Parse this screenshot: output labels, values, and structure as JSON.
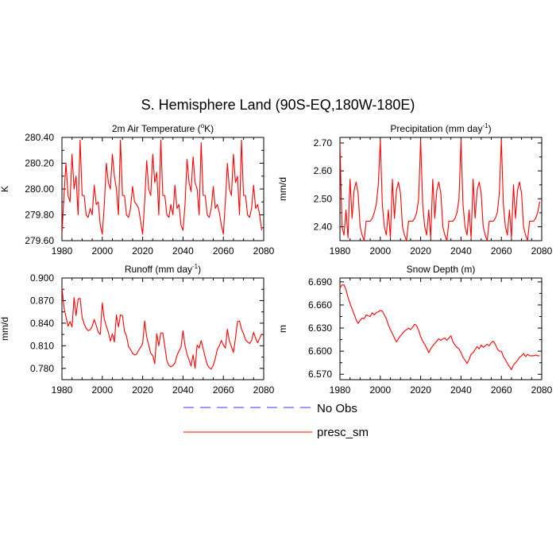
{
  "figure": {
    "title": "S. Hemisphere Land (90S-EQ,180W-180E)"
  },
  "legend": [
    {
      "label": "No Obs",
      "color": "#3333ff",
      "style": "dashed"
    },
    {
      "label": "presc_sm",
      "color": "#ff0000",
      "style": "solid"
    }
  ],
  "chart_data": [
    {
      "type": "line",
      "title": "2m Air Temperature (°K)",
      "ylabel": "K",
      "xlim": [
        1980,
        2080
      ],
      "ylim": [
        279.6,
        280.4
      ],
      "xticks": [
        "1980",
        "2000",
        "2020",
        "2040",
        "2060",
        "2080"
      ],
      "yticks": [
        "279.60",
        "279.80",
        "280.00",
        "280.20",
        "280.40"
      ],
      "series": [
        {
          "name": "presc_sm",
          "color": "#ff0000",
          "x": [
            1980,
            1981,
            1982,
            1983,
            1984,
            1985,
            1986,
            1987,
            1988,
            1989,
            1990,
            1991,
            1992,
            1993,
            1994,
            1995,
            1996,
            1997,
            1998,
            1999,
            2000,
            2001,
            2002,
            2003,
            2004,
            2005,
            2006,
            2007,
            2008,
            2009,
            2010,
            2011,
            2012,
            2013,
            2014,
            2015,
            2016,
            2017,
            2018,
            2019,
            2020,
            2021,
            2022,
            2023,
            2024,
            2025,
            2026,
            2027,
            2028,
            2029,
            2030,
            2031,
            2032,
            2033,
            2034,
            2035,
            2036,
            2037,
            2038,
            2039,
            2040,
            2041,
            2042,
            2043,
            2044,
            2045,
            2046,
            2047,
            2048,
            2049,
            2050,
            2051,
            2052,
            2053,
            2054,
            2055,
            2056,
            2057,
            2058,
            2059,
            2060,
            2061,
            2062,
            2063,
            2064,
            2065,
            2066,
            2067,
            2068,
            2069,
            2070,
            2071,
            2072,
            2073,
            2074,
            2075,
            2076,
            2077,
            2078,
            2079
          ],
          "y": [
            279.65,
            279.95,
            280.2,
            279.95,
            279.9,
            280.27,
            280.0,
            280.1,
            279.8,
            280.38,
            279.95,
            279.95,
            279.8,
            279.78,
            279.85,
            279.8,
            280.03,
            279.88,
            279.9,
            279.72,
            279.65,
            279.88,
            280.2,
            280.05,
            280.0,
            280.27,
            280.1,
            280.0,
            279.8,
            280.38,
            279.95,
            279.95,
            279.8,
            279.78,
            279.85,
            280.02,
            279.9,
            279.88,
            279.85,
            279.75,
            279.65,
            279.9,
            280.22,
            280.0,
            279.95,
            280.27,
            280.05,
            280.13,
            279.8,
            280.38,
            279.95,
            279.95,
            279.8,
            279.78,
            279.88,
            279.8,
            280.03,
            279.85,
            279.88,
            279.72,
            279.68,
            279.88,
            280.23,
            280.05,
            279.98,
            280.25,
            280.05,
            280.0,
            279.8,
            280.36,
            279.95,
            279.95,
            279.8,
            279.78,
            279.85,
            280.02,
            279.85,
            279.88,
            279.82,
            279.72,
            279.65,
            279.9,
            280.2,
            280.0,
            279.95,
            280.27,
            280.05,
            280.1,
            279.8,
            280.38,
            279.95,
            279.95,
            279.8,
            279.78,
            279.85,
            280.03,
            279.85,
            279.88,
            279.8,
            279.68
          ]
        }
      ]
    },
    {
      "type": "line",
      "title": "Precipitation (mm day-1)",
      "ylabel": "mm/d",
      "xlim": [
        1980,
        2080
      ],
      "ylim": [
        2.35,
        2.72
      ],
      "xticks": [
        "1980",
        "2000",
        "2020",
        "2040",
        "2060",
        "2080"
      ],
      "yticks": [
        "2.40",
        "2.50",
        "2.60",
        "2.70"
      ],
      "series": [
        {
          "name": "presc_sm",
          "color": "#ff0000",
          "x": [
            1980,
            1981,
            1982,
            1983,
            1984,
            1985,
            1986,
            1987,
            1988,
            1989,
            1990,
            1991,
            1992,
            1993,
            1994,
            1995,
            1996,
            1997,
            1998,
            1999,
            2000,
            2001,
            2002,
            2003,
            2004,
            2005,
            2006,
            2007,
            2008,
            2009,
            2010,
            2011,
            2012,
            2013,
            2014,
            2015,
            2016,
            2017,
            2018,
            2019,
            2020,
            2021,
            2022,
            2023,
            2024,
            2025,
            2026,
            2027,
            2028,
            2029,
            2030,
            2031,
            2032,
            2033,
            2034,
            2035,
            2036,
            2037,
            2038,
            2039,
            2040,
            2041,
            2042,
            2043,
            2044,
            2045,
            2046,
            2047,
            2048,
            2049,
            2050,
            2051,
            2052,
            2053,
            2054,
            2055,
            2056,
            2057,
            2058,
            2059,
            2060,
            2061,
            2062,
            2063,
            2064,
            2065,
            2066,
            2067,
            2068,
            2069,
            2070,
            2071,
            2072,
            2073,
            2074,
            2075,
            2076,
            2077,
            2078,
            2079
          ],
          "y": [
            2.7,
            2.4,
            2.37,
            2.46,
            2.36,
            2.57,
            2.43,
            2.53,
            2.56,
            2.52,
            2.4,
            2.37,
            2.35,
            2.42,
            2.42,
            2.42,
            2.43,
            2.45,
            2.48,
            2.55,
            2.71,
            2.48,
            2.4,
            2.37,
            2.46,
            2.36,
            2.57,
            2.43,
            2.53,
            2.56,
            2.52,
            2.4,
            2.37,
            2.35,
            2.42,
            2.42,
            2.42,
            2.43,
            2.45,
            2.5,
            2.71,
            2.48,
            2.4,
            2.37,
            2.46,
            2.36,
            2.57,
            2.43,
            2.53,
            2.56,
            2.52,
            2.4,
            2.37,
            2.35,
            2.42,
            2.42,
            2.42,
            2.43,
            2.45,
            2.5,
            2.71,
            2.48,
            2.4,
            2.37,
            2.46,
            2.36,
            2.57,
            2.43,
            2.53,
            2.56,
            2.52,
            2.4,
            2.37,
            2.35,
            2.42,
            2.42,
            2.42,
            2.43,
            2.45,
            2.52,
            2.71,
            2.48,
            2.4,
            2.37,
            2.46,
            2.36,
            2.55,
            2.43,
            2.53,
            2.56,
            2.52,
            2.4,
            2.37,
            2.35,
            2.42,
            2.42,
            2.42,
            2.43,
            2.45,
            2.49
          ]
        }
      ]
    },
    {
      "type": "line",
      "title": "Runoff (mm day-1)",
      "ylabel": "mm/d",
      "xlim": [
        1980,
        2080
      ],
      "ylim": [
        0.765,
        0.9
      ],
      "xticks": [
        "1980",
        "2000",
        "2020",
        "2040",
        "2060",
        "2080"
      ],
      "yticks": [
        "0.780",
        "0.810",
        "0.840",
        "0.870",
        "0.900"
      ],
      "series": [
        {
          "name": "presc_sm",
          "color": "#ff0000",
          "x": [
            1980,
            1981,
            1982,
            1983,
            1984,
            1985,
            1986,
            1987,
            1988,
            1989,
            1990,
            1991,
            1992,
            1993,
            1994,
            1995,
            1996,
            1997,
            1998,
            1999,
            2000,
            2001,
            2002,
            2003,
            2004,
            2005,
            2006,
            2007,
            2008,
            2009,
            2010,
            2011,
            2012,
            2013,
            2014,
            2015,
            2016,
            2017,
            2018,
            2019,
            2020,
            2021,
            2022,
            2023,
            2024,
            2025,
            2026,
            2027,
            2028,
            2029,
            2030,
            2031,
            2032,
            2033,
            2034,
            2035,
            2036,
            2037,
            2038,
            2039,
            2040,
            2041,
            2042,
            2043,
            2044,
            2045,
            2046,
            2047,
            2048,
            2049,
            2050,
            2051,
            2052,
            2053,
            2054,
            2055,
            2056,
            2057,
            2058,
            2059,
            2060,
            2061,
            2062,
            2063,
            2064,
            2065,
            2066,
            2067,
            2068,
            2069,
            2070,
            2071,
            2072,
            2073,
            2074,
            2075,
            2076,
            2077,
            2078,
            2079
          ],
          "y": [
            0.887,
            0.861,
            0.848,
            0.836,
            0.842,
            0.835,
            0.874,
            0.85,
            0.872,
            0.873,
            0.848,
            0.839,
            0.833,
            0.83,
            0.831,
            0.836,
            0.845,
            0.837,
            0.828,
            0.825,
            0.867,
            0.845,
            0.836,
            0.828,
            0.816,
            0.826,
            0.815,
            0.851,
            0.835,
            0.851,
            0.85,
            0.829,
            0.823,
            0.809,
            0.805,
            0.8,
            0.798,
            0.799,
            0.804,
            0.808,
            0.813,
            0.843,
            0.822,
            0.811,
            0.8,
            0.797,
            0.786,
            0.826,
            0.81,
            0.827,
            0.827,
            0.809,
            0.79,
            0.784,
            0.782,
            0.784,
            0.787,
            0.797,
            0.803,
            0.808,
            0.83,
            0.81,
            0.799,
            0.791,
            0.783,
            0.798,
            0.78,
            0.811,
            0.807,
            0.817,
            0.806,
            0.795,
            0.785,
            0.781,
            0.779,
            0.784,
            0.793,
            0.805,
            0.81,
            0.817,
            0.811,
            0.807,
            0.832,
            0.816,
            0.809,
            0.801,
            0.82,
            0.842,
            0.843,
            0.832,
            0.826,
            0.818,
            0.815,
            0.813,
            0.817,
            0.828,
            0.82,
            0.814,
            0.82,
            0.826
          ]
        }
      ]
    },
    {
      "type": "line",
      "title": "Snow Depth (m)",
      "ylabel": "m",
      "xlim": [
        1980,
        2080
      ],
      "ylim": [
        6.563,
        6.695
      ],
      "xticks": [
        "1980",
        "2000",
        "2020",
        "2040",
        "2060",
        "2080"
      ],
      "yticks": [
        "6.570",
        "6.600",
        "6.630",
        "6.660",
        "6.690"
      ],
      "series": [
        {
          "name": "presc_sm",
          "color": "#ff0000",
          "x": [
            1980,
            1981,
            1982,
            1983,
            1984,
            1985,
            1986,
            1987,
            1988,
            1989,
            1990,
            1991,
            1992,
            1993,
            1994,
            1995,
            1996,
            1997,
            1998,
            1999,
            2000,
            2001,
            2002,
            2003,
            2004,
            2005,
            2006,
            2007,
            2008,
            2009,
            2010,
            2011,
            2012,
            2013,
            2014,
            2015,
            2016,
            2017,
            2018,
            2019,
            2020,
            2021,
            2022,
            2023,
            2024,
            2025,
            2026,
            2027,
            2028,
            2029,
            2030,
            2031,
            2032,
            2033,
            2034,
            2035,
            2036,
            2037,
            2038,
            2039,
            2040,
            2041,
            2042,
            2043,
            2044,
            2045,
            2046,
            2047,
            2048,
            2049,
            2050,
            2051,
            2052,
            2053,
            2054,
            2055,
            2056,
            2057,
            2058,
            2059,
            2060,
            2061,
            2062,
            2063,
            2064,
            2065,
            2066,
            2067,
            2068,
            2069,
            2070,
            2071,
            2072,
            2073,
            2074,
            2075,
            2076,
            2077,
            2078,
            2079
          ],
          "y": [
            6.682,
            6.686,
            6.686,
            6.68,
            6.67,
            6.662,
            6.655,
            6.648,
            6.641,
            6.636,
            6.64,
            6.643,
            6.642,
            6.647,
            6.646,
            6.645,
            6.65,
            6.647,
            6.65,
            6.651,
            6.653,
            6.652,
            6.647,
            6.642,
            6.634,
            6.628,
            6.623,
            6.617,
            6.612,
            6.616,
            6.62,
            6.623,
            6.626,
            6.628,
            6.63,
            6.628,
            6.631,
            6.635,
            6.633,
            6.627,
            6.619,
            6.613,
            6.609,
            6.604,
            6.598,
            6.603,
            6.607,
            6.61,
            6.613,
            6.616,
            6.614,
            6.616,
            6.617,
            6.614,
            6.617,
            6.62,
            6.612,
            6.608,
            6.605,
            6.603,
            6.598,
            6.592,
            6.588,
            6.584,
            6.589,
            6.596,
            6.598,
            6.602,
            6.606,
            6.603,
            6.608,
            6.605,
            6.607,
            6.609,
            6.607,
            6.611,
            6.613,
            6.609,
            6.603,
            6.6,
            6.6,
            6.593,
            6.589,
            6.584,
            6.58,
            6.576,
            6.582,
            6.585,
            6.588,
            6.592,
            6.594,
            6.597,
            6.593,
            6.596,
            6.594,
            6.594,
            6.594,
            6.595,
            6.594,
            6.594
          ]
        }
      ]
    }
  ]
}
